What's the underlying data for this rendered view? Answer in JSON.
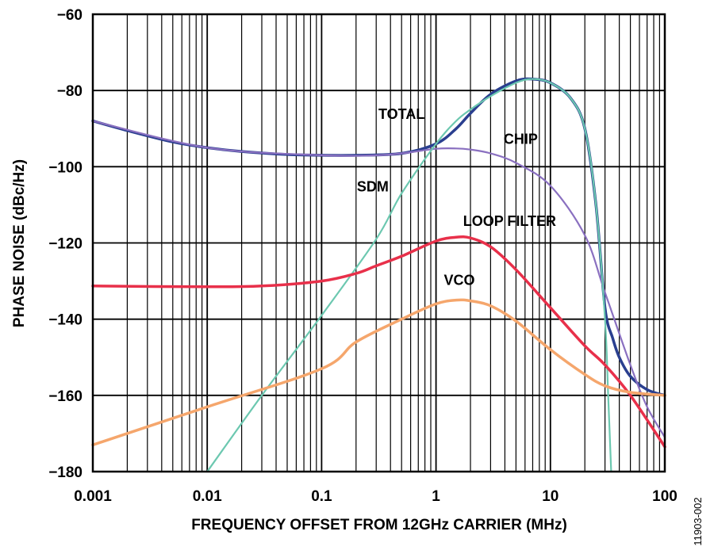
{
  "chart_data": {
    "type": "line",
    "title": "",
    "xlabel": "FREQUENCY OFFSET FROM 12GHz CARRIER (MHz)",
    "ylabel": "PHASE NOISE (dBc/Hz)",
    "x_scale": "log",
    "xlim": [
      0.001,
      100
    ],
    "ylim": [
      -180,
      -60
    ],
    "x_ticks": [
      "0.001",
      "0.01",
      "0.1",
      "1",
      "10",
      "100"
    ],
    "y_ticks": [
      "−60",
      "−80",
      "−100",
      "−120",
      "−140",
      "−160",
      "−180"
    ],
    "grid": true,
    "figure_id": "11903-002",
    "series": [
      {
        "name": "TOTAL",
        "color": "#2a3f8f",
        "x": [
          0.001,
          0.002,
          0.005,
          0.01,
          0.02,
          0.05,
          0.1,
          0.2,
          0.5,
          1,
          1.5,
          2,
          3,
          5,
          7,
          10,
          15,
          20,
          25,
          30,
          35,
          40,
          50,
          70,
          100
        ],
        "y": [
          -88,
          -90.5,
          -93.5,
          -95,
          -96,
          -96.8,
          -97,
          -97,
          -96.5,
          -94,
          -90,
          -86,
          -81,
          -77.5,
          -77,
          -78,
          -82,
          -90,
          -110,
          -137,
          -145,
          -150,
          -155,
          -158.5,
          -160
        ]
      },
      {
        "name": "CHIP",
        "color": "#8a70c0",
        "x": [
          0.001,
          0.01,
          0.1,
          0.3,
          0.5,
          1,
          1.5,
          2,
          3,
          5,
          10,
          20,
          30,
          50,
          70,
          100
        ],
        "y": [
          -88,
          -95,
          -97,
          -97,
          -96.5,
          -95.3,
          -95.2,
          -95.5,
          -96.5,
          -99,
          -105,
          -118,
          -133,
          -152,
          -163,
          -171
        ]
      },
      {
        "name": "SDM",
        "color": "#6cc8b0",
        "x": [
          0.01,
          0.03,
          0.1,
          0.3,
          0.5,
          1,
          1.5,
          2,
          3,
          5,
          7,
          10,
          15,
          20,
          25,
          30,
          32,
          34
        ],
        "y": [
          -180,
          -160,
          -139,
          -119,
          -107,
          -94,
          -88,
          -85,
          -81.5,
          -78,
          -77,
          -78,
          -82,
          -90,
          -110,
          -140,
          -160,
          -180
        ]
      },
      {
        "name": "LOOP FILTER",
        "color": "#e8304a",
        "x": [
          0.001,
          0.01,
          0.03,
          0.1,
          0.2,
          0.3,
          0.5,
          1,
          1.5,
          2,
          3,
          5,
          10,
          20,
          30,
          50,
          100
        ],
        "y": [
          -131.3,
          -131.5,
          -131.3,
          -130,
          -128,
          -126,
          -123.5,
          -119.5,
          -118.5,
          -118.7,
          -121,
          -127,
          -137,
          -147,
          -152,
          -160,
          -173.5
        ]
      },
      {
        "name": "VCO",
        "color": "#f5a66c",
        "x": [
          0.001,
          0.01,
          0.1,
          0.2,
          0.5,
          1,
          1.5,
          2,
          3,
          5,
          10,
          20,
          30,
          50,
          100
        ],
        "y": [
          -173,
          -163,
          -153,
          -146,
          -140,
          -136,
          -135,
          -135.2,
          -136.5,
          -140.5,
          -148,
          -154.5,
          -157.5,
          -159.2,
          -160
        ]
      }
    ],
    "annotations": [
      {
        "text": "TOTAL",
        "x": 0.5,
        "y": -87.5
      },
      {
        "text": "CHIP",
        "x": 5.5,
        "y": -94
      },
      {
        "text": "SDM",
        "x": 0.28,
        "y": -106.5
      },
      {
        "text": "LOOP FILTER",
        "x": 4.4,
        "y": -115.5
      },
      {
        "text": "VCO",
        "x": 1.6,
        "y": -131
      }
    ]
  }
}
